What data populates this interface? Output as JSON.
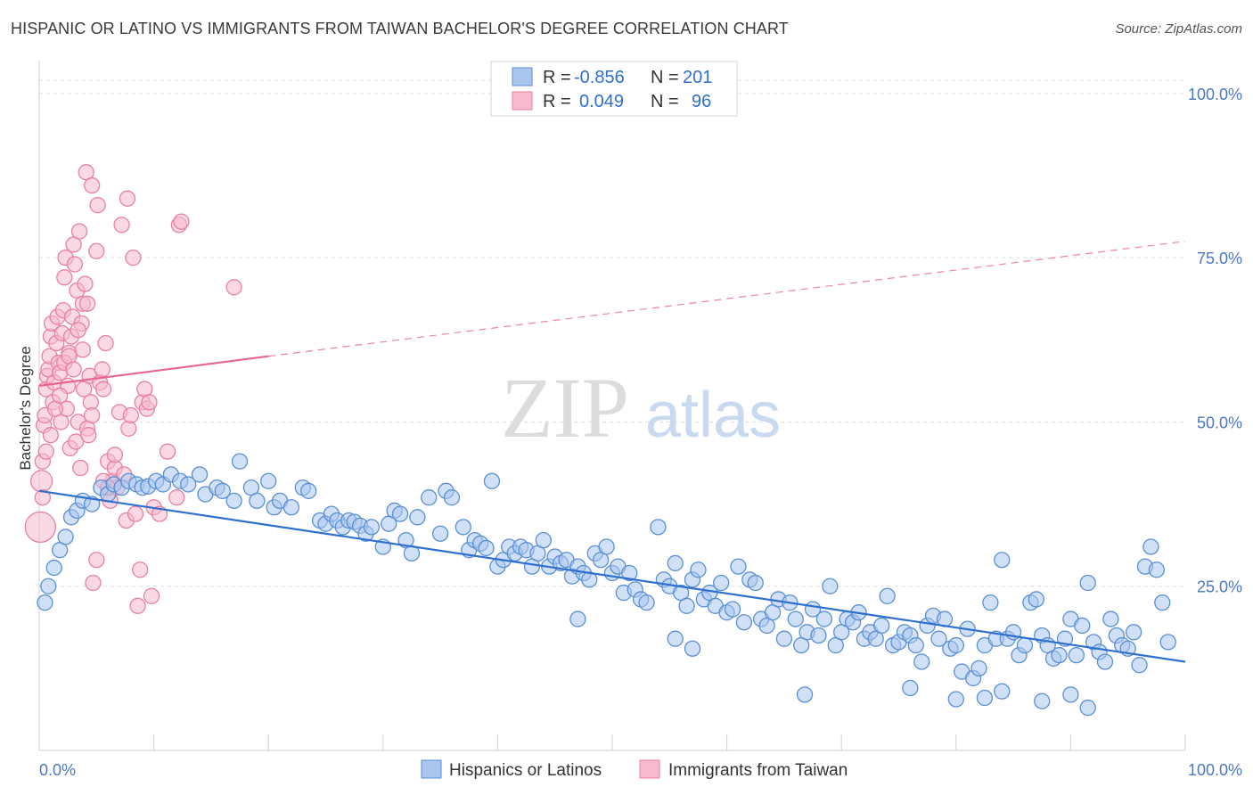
{
  "title": "HISPANIC OR LATINO VS IMMIGRANTS FROM TAIWAN BACHELOR'S DEGREE CORRELATION CHART",
  "source": "Source: ZipAtlas.com",
  "watermark": {
    "zip": "ZIP",
    "atlas": "atlas"
  },
  "colors": {
    "blue_fill": "#a9c6ef",
    "blue_stroke": "#5b8fd6",
    "blue_line": "#2f6fd0",
    "pink_fill": "#f6b9cd",
    "pink_stroke": "#e880a3",
    "pink_line": "#e8648f",
    "tick_text": "#4a78c4",
    "grid": "#dddddd"
  },
  "legend": {
    "rows": [
      {
        "r_label": "R =",
        "r_value": "-0.856",
        "n_label": "N =",
        "n_value": "201"
      },
      {
        "r_label": "R =",
        "r_value": "0.049",
        "n_label": "N =",
        "n_value": "96"
      }
    ]
  },
  "chart_data": {
    "type": "scatter",
    "ylabel": "Bachelor's Degree",
    "xlim": [
      0,
      100
    ],
    "ylim": [
      0,
      105
    ],
    "x_tick_labels": [
      "0.0%",
      "100.0%"
    ],
    "y_ticks": [
      {
        "value": 100,
        "label": "100.0%"
      },
      {
        "value": 75,
        "label": "75.0%"
      },
      {
        "value": 50,
        "label": "50.0%"
      },
      {
        "value": 25,
        "label": "25.0%"
      }
    ],
    "grid": true,
    "legend_position": "top-center",
    "series": [
      {
        "name": "Hispanics or Latinos",
        "trend": {
          "x0": 0,
          "y0": 39.5,
          "x1": 100,
          "y1": 13.5,
          "dashed_from": null
        },
        "points": [
          [
            0.5,
            22.5
          ],
          [
            0.8,
            25
          ],
          [
            1.3,
            27.8
          ],
          [
            1.8,
            30.5
          ],
          [
            2.3,
            32.5
          ],
          [
            2.8,
            35.5
          ],
          [
            3.3,
            36.5
          ],
          [
            3.8,
            38
          ],
          [
            4.6,
            37.5
          ],
          [
            5.4,
            40
          ],
          [
            6.0,
            39
          ],
          [
            6.5,
            40.5
          ],
          [
            7.2,
            40
          ],
          [
            7.8,
            41
          ],
          [
            8.5,
            40.5
          ],
          [
            9.0,
            40
          ],
          [
            9.5,
            40.2
          ],
          [
            10.2,
            41
          ],
          [
            10.8,
            40.5
          ],
          [
            11.5,
            42
          ],
          [
            12.3,
            41
          ],
          [
            13.0,
            40.5
          ],
          [
            14.0,
            42
          ],
          [
            14.5,
            39
          ],
          [
            15.5,
            40
          ],
          [
            16.0,
            39.5
          ],
          [
            17.0,
            38
          ],
          [
            17.5,
            44
          ],
          [
            18.5,
            40
          ],
          [
            19.0,
            38
          ],
          [
            20.0,
            41
          ],
          [
            20.5,
            37
          ],
          [
            21.0,
            38
          ],
          [
            22.0,
            37
          ],
          [
            23.0,
            40
          ],
          [
            23.5,
            39.5
          ],
          [
            24.5,
            35
          ],
          [
            25.0,
            34.5
          ],
          [
            25.5,
            36
          ],
          [
            26.0,
            35
          ],
          [
            26.5,
            34
          ],
          [
            27.0,
            35
          ],
          [
            27.5,
            34.8
          ],
          [
            28.0,
            34.2
          ],
          [
            28.5,
            33
          ],
          [
            29.0,
            34
          ],
          [
            30.0,
            31
          ],
          [
            30.5,
            34.5
          ],
          [
            31.0,
            36.5
          ],
          [
            31.5,
            36
          ],
          [
            32.0,
            32
          ],
          [
            32.5,
            30
          ],
          [
            33.0,
            35.5
          ],
          [
            34.0,
            38.5
          ],
          [
            35.0,
            33
          ],
          [
            35.5,
            39.5
          ],
          [
            36.0,
            38.5
          ],
          [
            37.0,
            34
          ],
          [
            37.5,
            30.5
          ],
          [
            38.0,
            32
          ],
          [
            38.5,
            31.5
          ],
          [
            39.0,
            30.8
          ],
          [
            39.5,
            41
          ],
          [
            40.0,
            28
          ],
          [
            40.5,
            29
          ],
          [
            41.0,
            31
          ],
          [
            41.5,
            30
          ],
          [
            42.0,
            31
          ],
          [
            42.5,
            30.5
          ],
          [
            43.0,
            28
          ],
          [
            43.5,
            30
          ],
          [
            44.0,
            32
          ],
          [
            44.5,
            28
          ],
          [
            45.0,
            29.5
          ],
          [
            45.5,
            28.5
          ],
          [
            46.0,
            29
          ],
          [
            46.5,
            26.5
          ],
          [
            47.0,
            28
          ],
          [
            47.5,
            27
          ],
          [
            48.0,
            26
          ],
          [
            48.5,
            30
          ],
          [
            49.0,
            29
          ],
          [
            49.5,
            31
          ],
          [
            50.0,
            27
          ],
          [
            50.5,
            28
          ],
          [
            51.0,
            24
          ],
          [
            51.5,
            27
          ],
          [
            52.0,
            24.5
          ],
          [
            52.5,
            23
          ],
          [
            53.0,
            22.5
          ],
          [
            54.0,
            34
          ],
          [
            54.5,
            26
          ],
          [
            55.0,
            25
          ],
          [
            55.5,
            28.5
          ],
          [
            56.0,
            24
          ],
          [
            56.5,
            22
          ],
          [
            57.0,
            26
          ],
          [
            57.5,
            27.5
          ],
          [
            58.0,
            23
          ],
          [
            58.5,
            24
          ],
          [
            59.0,
            22
          ],
          [
            59.5,
            25.5
          ],
          [
            60.0,
            21
          ],
          [
            60.5,
            21.5
          ],
          [
            61.0,
            28
          ],
          [
            61.5,
            19.5
          ],
          [
            62.0,
            26
          ],
          [
            62.5,
            25.5
          ],
          [
            63.0,
            20
          ],
          [
            63.5,
            19
          ],
          [
            64.0,
            21
          ],
          [
            64.5,
            23
          ],
          [
            65.0,
            17
          ],
          [
            65.5,
            22.5
          ],
          [
            66.0,
            20
          ],
          [
            66.5,
            16
          ],
          [
            67.0,
            18
          ],
          [
            67.5,
            21.5
          ],
          [
            68.0,
            17.5
          ],
          [
            68.5,
            20
          ],
          [
            69.0,
            25
          ],
          [
            69.5,
            16
          ],
          [
            70.0,
            18
          ],
          [
            70.5,
            20
          ],
          [
            71.0,
            19.5
          ],
          [
            71.5,
            21
          ],
          [
            72.0,
            17
          ],
          [
            72.5,
            18
          ],
          [
            73.0,
            17
          ],
          [
            73.5,
            19
          ],
          [
            74.0,
            23.5
          ],
          [
            74.5,
            16
          ],
          [
            75.0,
            16.5
          ],
          [
            75.5,
            18
          ],
          [
            76.0,
            17.5
          ],
          [
            76.5,
            16
          ],
          [
            77.0,
            13.5
          ],
          [
            77.5,
            19
          ],
          [
            78.0,
            20.5
          ],
          [
            78.5,
            17
          ],
          [
            79.0,
            20
          ],
          [
            79.5,
            15.5
          ],
          [
            80.0,
            16
          ],
          [
            80.5,
            12
          ],
          [
            81.0,
            18.5
          ],
          [
            81.5,
            11
          ],
          [
            82.0,
            12.5
          ],
          [
            82.5,
            16
          ],
          [
            83.0,
            22.5
          ],
          [
            83.5,
            17
          ],
          [
            84.0,
            29
          ],
          [
            84.5,
            17
          ],
          [
            85.0,
            18
          ],
          [
            85.5,
            14.5
          ],
          [
            86.0,
            16
          ],
          [
            86.5,
            22.5
          ],
          [
            87.0,
            23
          ],
          [
            87.5,
            17.5
          ],
          [
            88.0,
            16
          ],
          [
            88.5,
            14
          ],
          [
            89.0,
            14.5
          ],
          [
            89.5,
            17
          ],
          [
            90.0,
            20
          ],
          [
            90.5,
            14.5
          ],
          [
            91.0,
            19
          ],
          [
            91.5,
            25.5
          ],
          [
            92.0,
            16.5
          ],
          [
            92.5,
            15
          ],
          [
            93.0,
            13.5
          ],
          [
            93.5,
            20
          ],
          [
            94.0,
            17.5
          ],
          [
            94.5,
            16
          ],
          [
            95.0,
            15.5
          ],
          [
            95.5,
            18
          ],
          [
            96.0,
            13
          ],
          [
            96.5,
            28
          ],
          [
            97.0,
            31
          ],
          [
            97.5,
            27.5
          ],
          [
            98.0,
            22.5
          ],
          [
            98.5,
            16.5
          ],
          [
            66.8,
            8.5
          ],
          [
            76.0,
            9.5
          ],
          [
            80.0,
            7.8
          ],
          [
            82.5,
            8
          ],
          [
            84.0,
            9
          ],
          [
            87.5,
            7.5
          ],
          [
            90.0,
            8.5
          ],
          [
            91.5,
            6.5
          ],
          [
            57.0,
            15.5
          ],
          [
            55.5,
            17
          ],
          [
            47.0,
            20
          ]
        ]
      },
      {
        "name": "Immigrants from Taiwan",
        "trend": {
          "x0": 0,
          "y0": 55.5,
          "x1": 20,
          "y1": 60,
          "dashed_to_x": 100,
          "dashed_to_y": 77.5
        },
        "points": [
          [
            0.1,
            34
          ],
          [
            0.2,
            41
          ],
          [
            0.3,
            44
          ],
          [
            0.4,
            49.5
          ],
          [
            0.5,
            51
          ],
          [
            0.6,
            55
          ],
          [
            0.7,
            57
          ],
          [
            0.8,
            58
          ],
          [
            0.9,
            60
          ],
          [
            1.0,
            63
          ],
          [
            1.1,
            65
          ],
          [
            1.2,
            53
          ],
          [
            1.3,
            56
          ],
          [
            1.5,
            62
          ],
          [
            1.6,
            66
          ],
          [
            1.7,
            59
          ],
          [
            1.8,
            57.5
          ],
          [
            1.9,
            50
          ],
          [
            2.0,
            63.5
          ],
          [
            2.1,
            67
          ],
          [
            2.2,
            72
          ],
          [
            2.3,
            75
          ],
          [
            2.4,
            52
          ],
          [
            2.5,
            55.5
          ],
          [
            2.6,
            60.5
          ],
          [
            2.7,
            46
          ],
          [
            2.8,
            63
          ],
          [
            2.9,
            66
          ],
          [
            3.0,
            77
          ],
          [
            3.1,
            74
          ],
          [
            3.2,
            47
          ],
          [
            3.3,
            70
          ],
          [
            3.4,
            50
          ],
          [
            3.5,
            79
          ],
          [
            3.6,
            43
          ],
          [
            3.7,
            65
          ],
          [
            3.8,
            61
          ],
          [
            3.9,
            55
          ],
          [
            4.0,
            71
          ],
          [
            4.1,
            88
          ],
          [
            4.2,
            49
          ],
          [
            4.3,
            48
          ],
          [
            4.4,
            57
          ],
          [
            4.5,
            53
          ],
          [
            4.6,
            51
          ],
          [
            4.7,
            25.5
          ],
          [
            5.0,
            76
          ],
          [
            5.1,
            83
          ],
          [
            5.3,
            56
          ],
          [
            5.5,
            58
          ],
          [
            5.6,
            55
          ],
          [
            5.8,
            62
          ],
          [
            6.0,
            44
          ],
          [
            6.2,
            38
          ],
          [
            6.4,
            41
          ],
          [
            6.6,
            43
          ],
          [
            6.8,
            40
          ],
          [
            7.0,
            51.5
          ],
          [
            7.2,
            80
          ],
          [
            7.4,
            42
          ],
          [
            7.6,
            35
          ],
          [
            7.7,
            84
          ],
          [
            7.8,
            49
          ],
          [
            8.0,
            51
          ],
          [
            8.2,
            75
          ],
          [
            8.4,
            36
          ],
          [
            8.6,
            22
          ],
          [
            8.8,
            27.5
          ],
          [
            9.0,
            53
          ],
          [
            9.2,
            55
          ],
          [
            9.4,
            52
          ],
          [
            9.6,
            53
          ],
          [
            9.8,
            23.5
          ],
          [
            10.0,
            37
          ],
          [
            10.5,
            36
          ],
          [
            11.2,
            45.5
          ],
          [
            12.0,
            38.5
          ],
          [
            12.2,
            80
          ],
          [
            12.4,
            80.5
          ],
          [
            17.0,
            70.5
          ],
          [
            0.3,
            38.5
          ],
          [
            0.6,
            45.5
          ],
          [
            1.0,
            48
          ],
          [
            1.4,
            52
          ],
          [
            1.8,
            54
          ],
          [
            2.2,
            59
          ],
          [
            2.6,
            60
          ],
          [
            3.0,
            58
          ],
          [
            3.4,
            64
          ],
          [
            3.8,
            68
          ],
          [
            4.2,
            68
          ],
          [
            4.6,
            86
          ],
          [
            5.0,
            29
          ],
          [
            5.6,
            41
          ],
          [
            6.0,
            40
          ],
          [
            6.6,
            45
          ]
        ]
      }
    ],
    "bottom_legend": [
      "Hispanics or Latinos",
      "Immigrants from Taiwan"
    ]
  }
}
